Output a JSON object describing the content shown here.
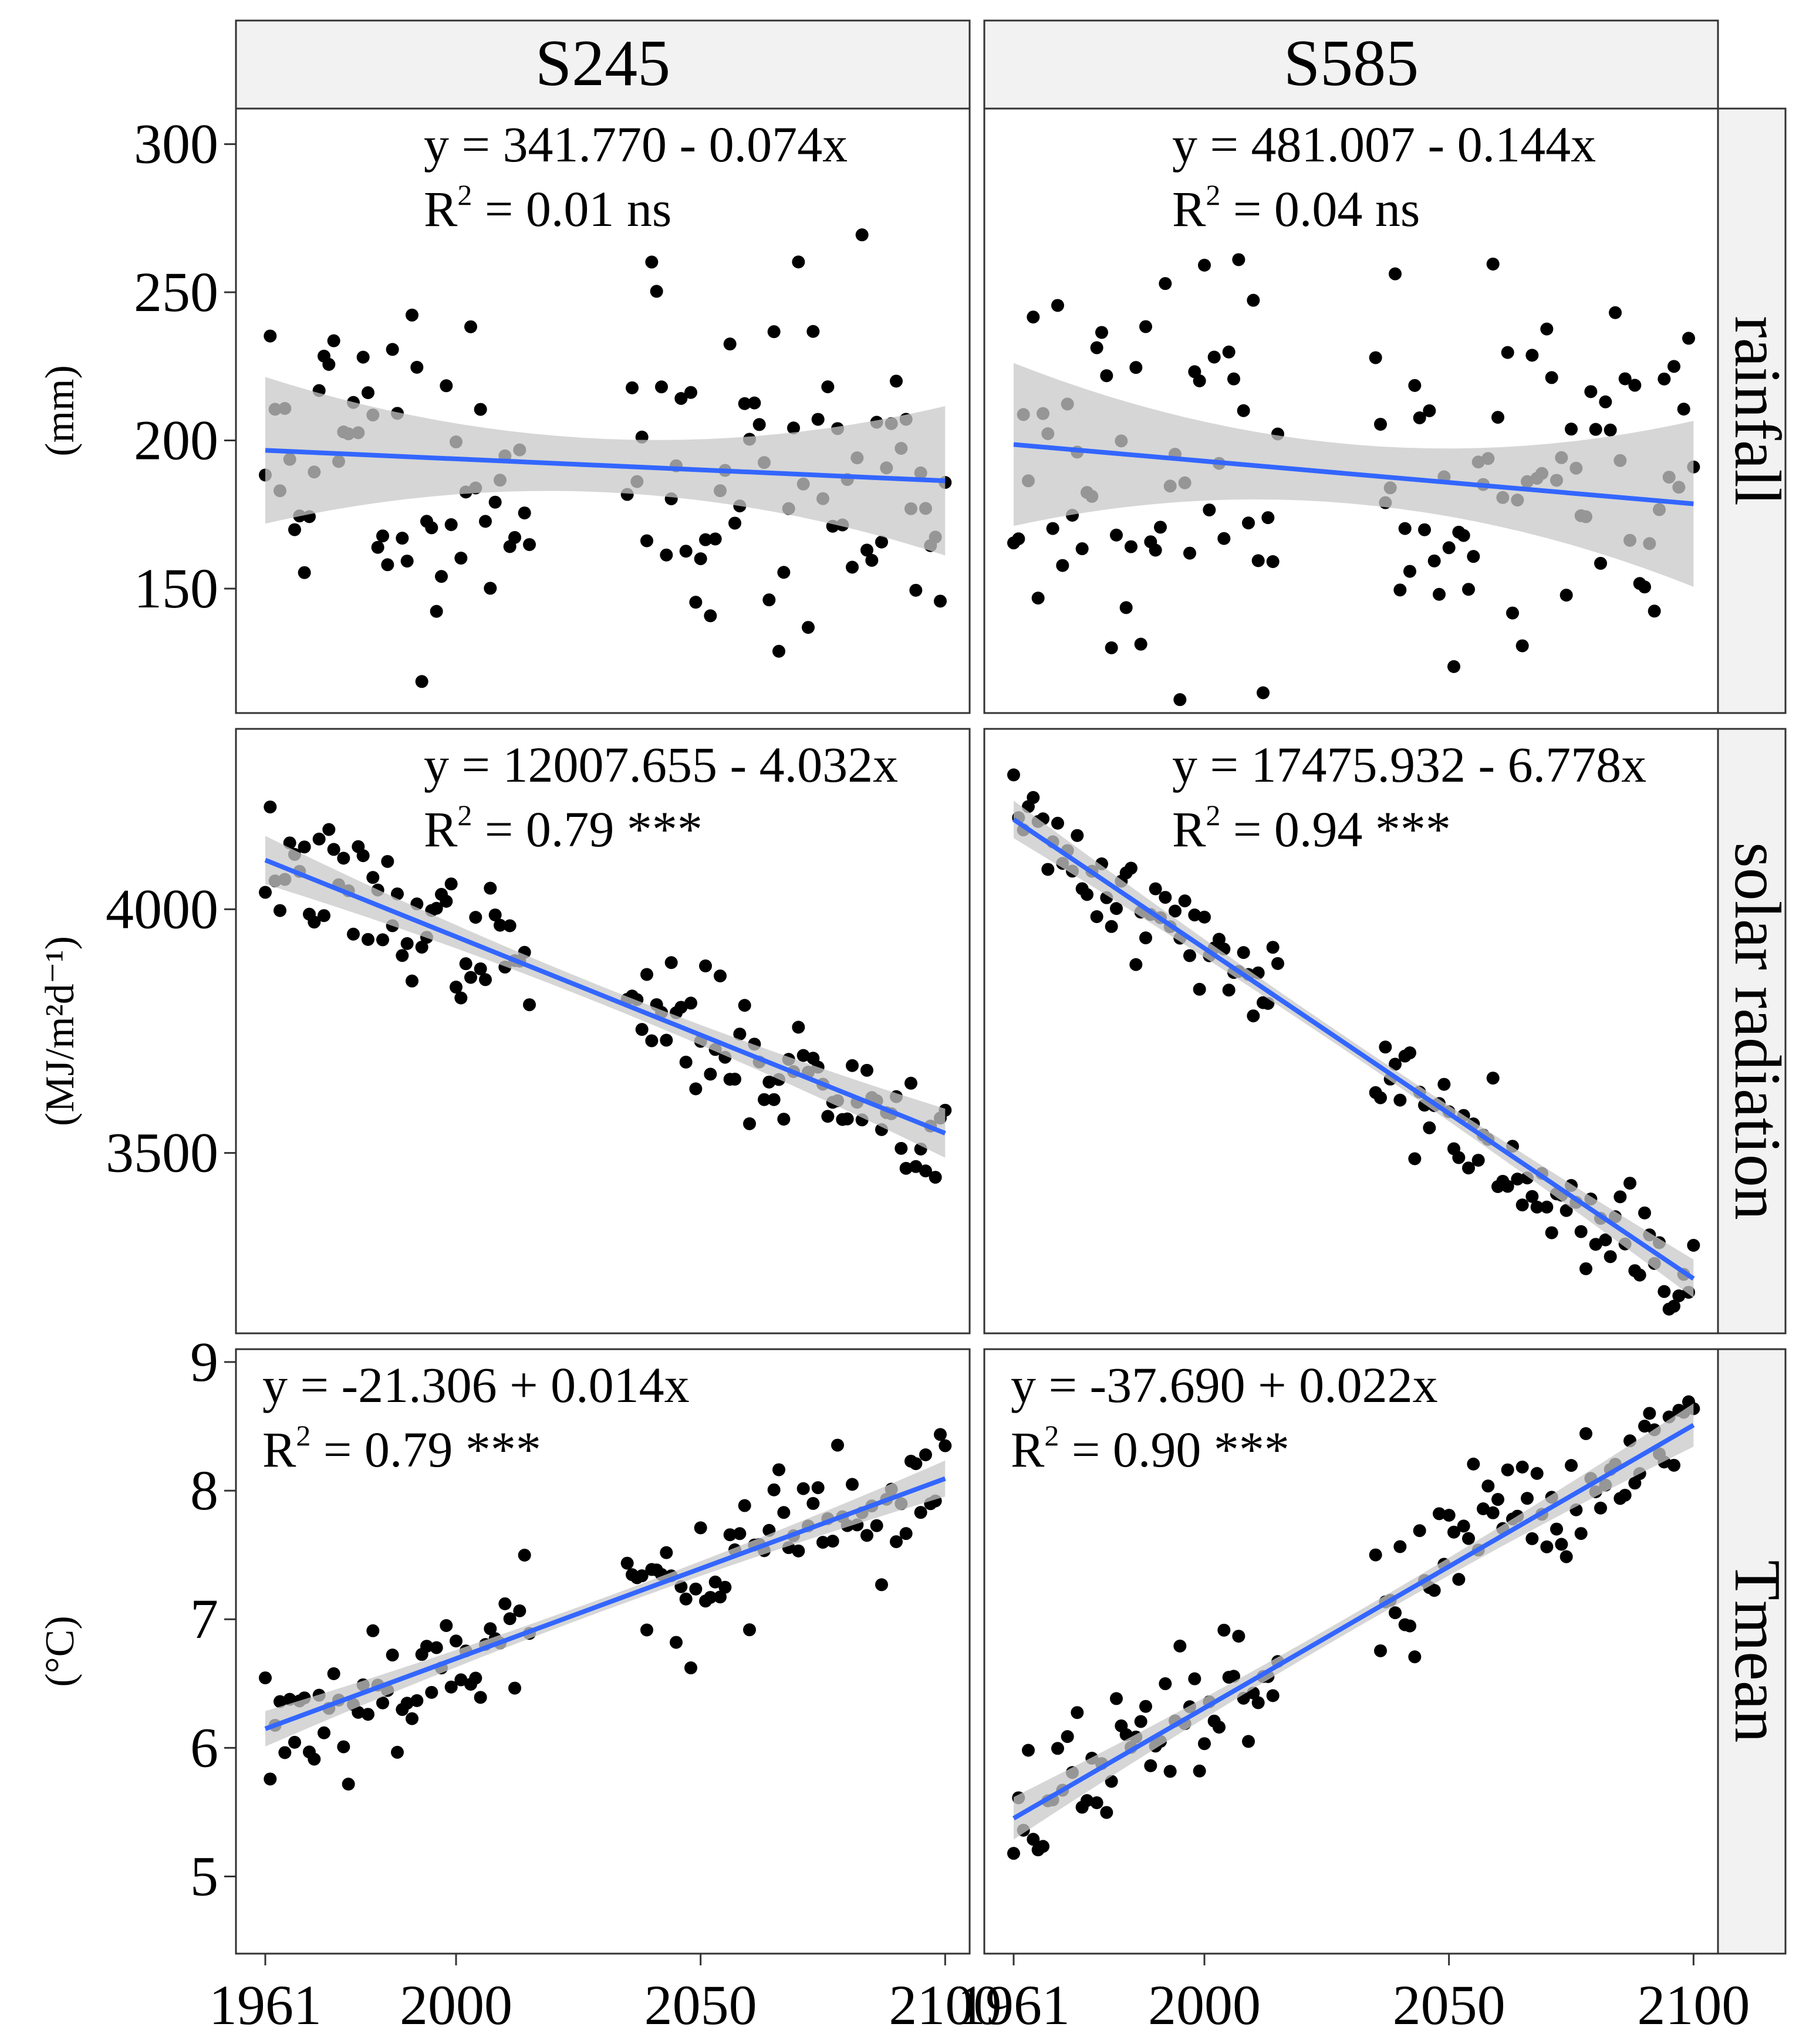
{
  "chart_data": {
    "type": "scatter",
    "facet_columns": [
      "S245",
      "S585"
    ],
    "facet_rows": [
      "rainfall",
      "solar radiation",
      "Tmean"
    ],
    "xlim": [
      1955,
      2105
    ],
    "x_ticks": [
      1961,
      2000,
      2050,
      2100
    ],
    "colors": {
      "points": "#000000",
      "fit_line": "#3366ff",
      "ci_band": "#c8c8c8",
      "strip_bg": "#f2f2f2"
    },
    "rows": [
      {
        "name": "rainfall",
        "unit": "(mm)",
        "ylim": [
          108,
          312
        ],
        "y_ticks": [
          150,
          200,
          250,
          300
        ],
        "panels": [
          {
            "scenario": "S245",
            "equation": "y = 341.770 - 0.074x",
            "r2_label": "R",
            "r2_sup": "2",
            "r2_text": " = 0.01 ns",
            "fit": {
              "intercept": 341.77,
              "slope": -0.074,
              "band": 9
            },
            "eq_position": "top-center",
            "points_seed": 11,
            "noise": 30
          },
          {
            "scenario": "S585",
            "equation": "y = 481.007 - 0.144x",
            "r2_label": "R",
            "r2_sup": "2",
            "r2_text": " = 0.04 ns",
            "fit": {
              "intercept": 481.007,
              "slope": -0.144,
              "band": 10
            },
            "eq_position": "top-center",
            "points_seed": 23,
            "noise": 30
          }
        ]
      },
      {
        "name": "solar radiation",
        "unit": "(MJ/m²d⁻¹)",
        "ylim": [
          3130,
          4370
        ],
        "y_ticks": [
          3500,
          4000
        ],
        "panels": [
          {
            "scenario": "S245",
            "equation": "y = 12007.655 - 4.032x",
            "r2_label": "R",
            "r2_sup": "2",
            "r2_text": " = 0.79 ***",
            "fit": {
              "intercept": 12007.655,
              "slope": -4.032,
              "band": 18
            },
            "eq_position": "top-center",
            "points_seed": 37,
            "noise": 60
          },
          {
            "scenario": "S585",
            "equation": "y = 17475.932 - 6.778x",
            "r2_label": "R",
            "r2_sup": "2",
            "r2_text": " = 0.94 ***",
            "fit": {
              "intercept": 17475.932,
              "slope": -6.778,
              "band": 14
            },
            "eq_position": "top-center",
            "points_seed": 41,
            "noise": 55
          }
        ]
      },
      {
        "name": "Tmean",
        "unit": "(°C)",
        "ylim": [
          4.4,
          9.1
        ],
        "y_ticks": [
          5,
          6,
          7,
          8,
          9
        ],
        "panels": [
          {
            "scenario": "S245",
            "equation": "y = -21.306 + 0.014x",
            "r2_label": "R",
            "r2_sup": "2",
            "r2_text": " = 0.79 ***",
            "fit": {
              "intercept": -21.306,
              "slope": 0.014,
              "band": 0.05
            },
            "eq_position": "top-left",
            "points_seed": 53,
            "noise": 0.28
          },
          {
            "scenario": "S585",
            "equation": "y = -37.690 + 0.022x",
            "r2_label": "R",
            "r2_sup": "2",
            "r2_text": " = 0.90 ***",
            "fit": {
              "intercept": -37.69,
              "slope": 0.022,
              "band": 0.06
            },
            "eq_position": "top-left",
            "points_seed": 67,
            "noise": 0.27
          }
        ]
      }
    ],
    "point_years": "1961-2015 and 2035-2100"
  }
}
